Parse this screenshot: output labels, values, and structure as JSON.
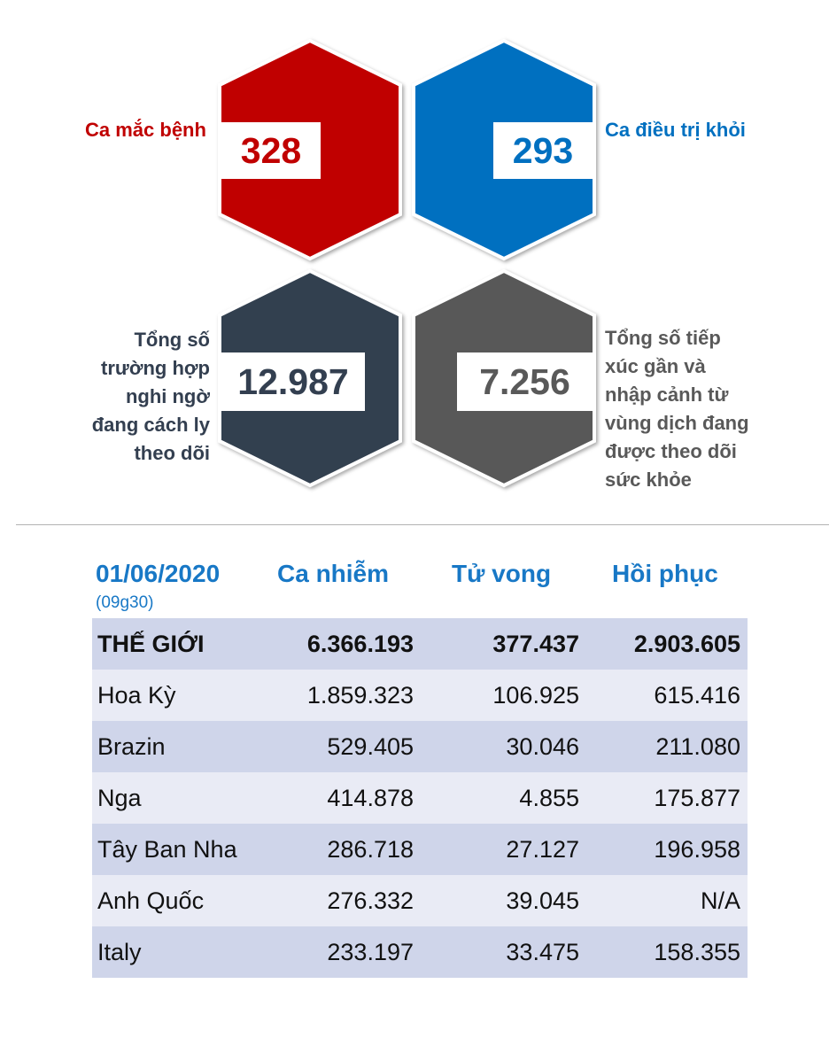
{
  "stats": {
    "cases": {
      "label": "Ca mắc bệnh",
      "value": "328",
      "color": "#c00000"
    },
    "recovered": {
      "label": "Ca điều trị khỏi",
      "value": "293",
      "color": "#0070c0"
    },
    "quarantine": {
      "label_lines": [
        "Tổng số",
        "trường hợp",
        "nghi ngờ",
        "đang cách ly",
        "theo dõi"
      ],
      "value": "12.987",
      "color": "#333f50"
    },
    "monitored": {
      "label_lines": [
        "Tổng số tiếp",
        "xúc gần và",
        "nhập cảnh từ",
        "vùng dịch đang",
        "được theo dõi",
        "sức khỏe"
      ],
      "value": "7.256",
      "color": "#595959"
    }
  },
  "world": {
    "date": "01/06/2020",
    "time": "(09g30)",
    "headers": [
      "Ca nhiễm",
      "Tử vong",
      "Hồi phục"
    ],
    "rows": [
      {
        "country": "THẾ GIỚI",
        "infected": "6.366.193",
        "deaths": "377.437",
        "recovered": "2.903.605"
      },
      {
        "country": "Hoa Kỳ",
        "infected": "1.859.323",
        "deaths": "106.925",
        "recovered": "615.416"
      },
      {
        "country": "Brazin",
        "infected": "529.405",
        "deaths": "30.046",
        "recovered": "211.080"
      },
      {
        "country": "Nga",
        "infected": "414.878",
        "deaths": "4.855",
        "recovered": "175.877"
      },
      {
        "country": "Tây Ban Nha",
        "infected": "286.718",
        "deaths": "27.127",
        "recovered": "196.958"
      },
      {
        "country": "Anh Quốc",
        "infected": "276.332",
        "deaths": "39.045",
        "recovered": "N/A"
      },
      {
        "country": "Italy",
        "infected": "233.197",
        "deaths": "33.475",
        "recovered": "158.355"
      }
    ]
  }
}
